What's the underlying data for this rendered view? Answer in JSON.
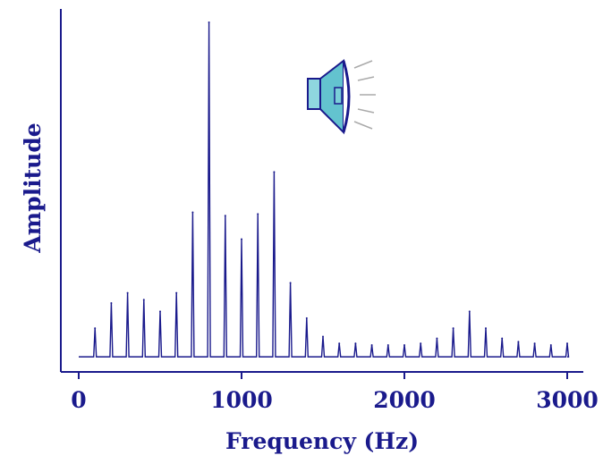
{
  "chart_data": {
    "type": "line",
    "title": "",
    "xlabel": "Frequency (Hz)",
    "ylabel": "Amplitude",
    "xlim": [
      0,
      3000
    ],
    "ylim": [
      0,
      100
    ],
    "x_ticks": [
      0,
      1000,
      2000,
      3000
    ],
    "x_tick_labels": [
      "0",
      "1000",
      "2000",
      "3000"
    ],
    "grid": false,
    "legend": "none",
    "line_color": "#1a1a8c",
    "baseline": 0.5,
    "peaks": {
      "x": [
        100,
        200,
        300,
        400,
        500,
        600,
        700,
        800,
        900,
        1000,
        1100,
        1200,
        1300,
        1400,
        1500,
        1600,
        1700,
        1800,
        1900,
        2000,
        2100,
        2200,
        2300,
        2400,
        2500,
        2600,
        2700,
        2800,
        2900,
        3000
      ],
      "y": [
        9,
        16.5,
        19.5,
        17.5,
        14,
        19.5,
        43.5,
        100,
        42.5,
        35.5,
        43,
        55.5,
        22.5,
        12,
        6.5,
        4.5,
        4.5,
        4,
        4,
        4,
        4.5,
        6,
        9,
        14,
        9,
        6,
        5,
        4.5,
        4,
        4.5
      ]
    }
  },
  "icons": {
    "speaker": "speaker-icon"
  }
}
